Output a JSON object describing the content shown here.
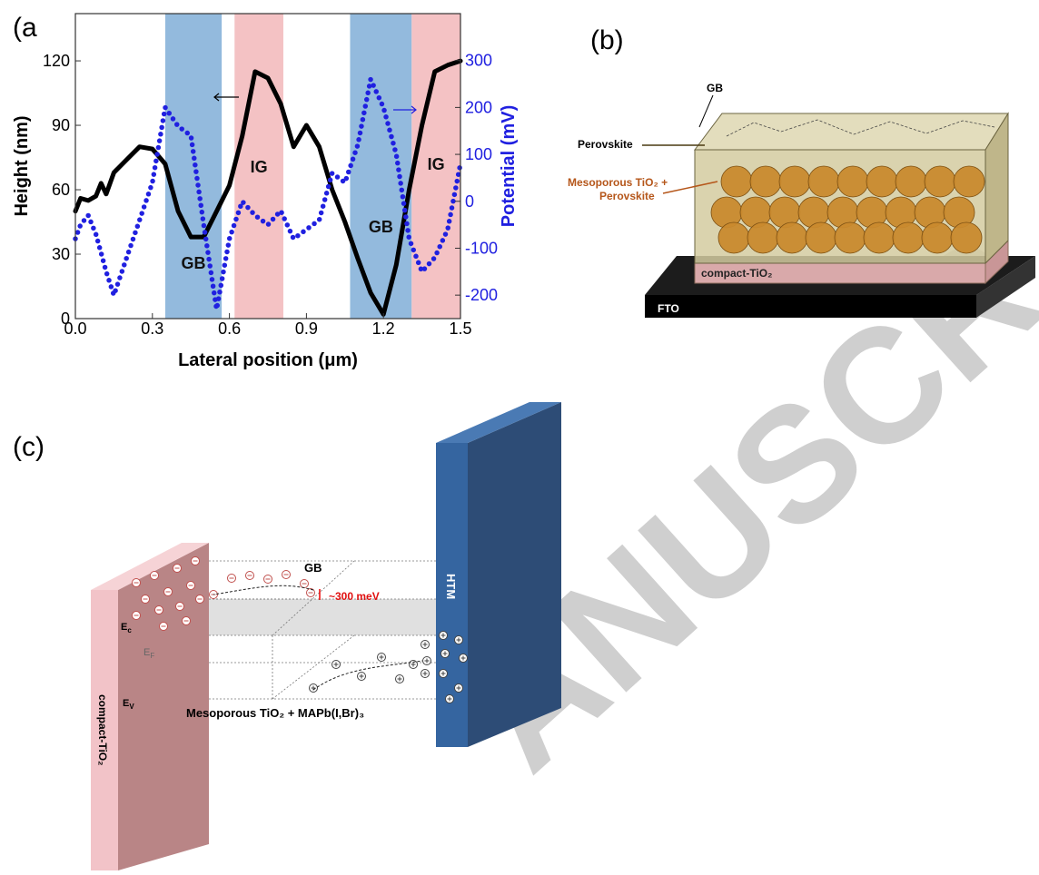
{
  "chart_data": {
    "type": "line",
    "panel_label": "(a",
    "xlabel": "Lateral position (μm)",
    "ylabel": "Height (nm)",
    "y2label": "Potential (mV)",
    "xlim": [
      0,
      1.5
    ],
    "xticks": [
      {
        "value": 0,
        "label": "0.0"
      },
      0.3,
      0.6,
      0.9,
      1.2,
      1.5
    ],
    "ylim": [
      0,
      142
    ],
    "yticks": [
      0,
      30,
      60,
      90,
      120
    ],
    "y2lim": [
      -250,
      400
    ],
    "y2ticks": [
      -200,
      -100,
      0,
      100,
      200,
      300
    ],
    "y2color": "#2020e0",
    "shaded_regions": [
      {
        "xlim": [
          0.35,
          0.57
        ],
        "color": "#93badd",
        "label": "GB"
      },
      {
        "xlim": [
          0.62,
          0.81
        ],
        "color": "#f4c2c4",
        "label": "IG"
      },
      {
        "xlim": [
          1.07,
          1.31
        ],
        "color": "#93badd",
        "label": "GB"
      },
      {
        "xlim": [
          1.31,
          1.5
        ],
        "color": "#f4c2c4",
        "label": "IG"
      }
    ],
    "x": [
      0,
      0.02,
      0.05,
      0.08,
      0.1,
      0.12,
      0.15,
      0.2,
      0.25,
      0.3,
      0.35,
      0.4,
      0.45,
      0.5,
      0.55,
      0.6,
      0.65,
      0.7,
      0.75,
      0.8,
      0.85,
      0.9,
      0.95,
      1.0,
      1.05,
      1.1,
      1.15,
      1.2,
      1.25,
      1.3,
      1.35,
      1.4,
      1.45,
      1.5
    ],
    "series": [
      {
        "color": "#000000",
        "style": "solid",
        "values": [
          50,
          56,
          55,
          57,
          63,
          58,
          68,
          74,
          80,
          79,
          72,
          50,
          38,
          38,
          50,
          62,
          85,
          115,
          112,
          100,
          80,
          90,
          80,
          60,
          45,
          28,
          12,
          2,
          25,
          60,
          90,
          115,
          118,
          120
        ]
      },
      {
        "color": "#2020e0",
        "style": "dotted",
        "axis": "y2",
        "values": [
          -80,
          -50,
          -30,
          -70,
          -110,
          -150,
          -200,
          -120,
          -40,
          40,
          200,
          160,
          140,
          -50,
          -230,
          -80,
          0,
          -30,
          -50,
          -20,
          -80,
          -60,
          -40,
          60,
          40,
          120,
          260,
          200,
          100,
          -80,
          -150,
          -120,
          -60,
          80
        ]
      }
    ]
  },
  "panel_b": {
    "panel_label": "(b)",
    "gb": "GB",
    "perovskite": "Perovskite",
    "mesoporous": [
      "Mesoporous TiO₂ +",
      "Perovskite"
    ],
    "compact": "compact-TiO₂",
    "fto": "FTO"
  },
  "panel_c": {
    "panel_label": "(c)",
    "gb": "GB",
    "barrier": "~300 meV",
    "htm": "HTM",
    "levels": [
      {
        "main": "E",
        "sub": "c"
      },
      {
        "main": "E",
        "sub": "F"
      },
      {
        "main": "E",
        "sub": "V"
      }
    ],
    "layer": "Mesoporous TiO₂ + MAPb(I,Br)₃",
    "compact": "compact-TiO₂"
  },
  "watermark": "ANUSCR"
}
